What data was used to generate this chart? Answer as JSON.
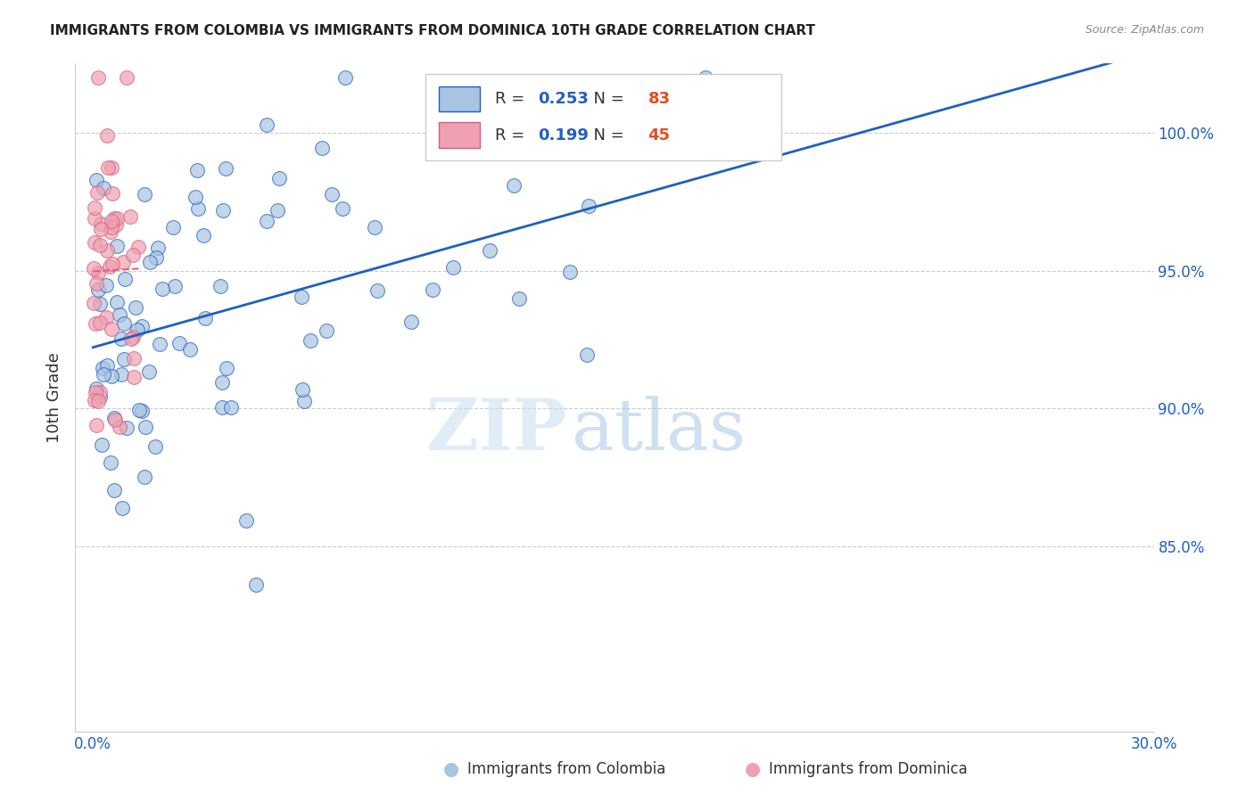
{
  "title": "IMMIGRANTS FROM COLOMBIA VS IMMIGRANTS FROM DOMINICA 10TH GRADE CORRELATION CHART",
  "source": "Source: ZipAtlas.com",
  "ylabel": "10th Grade",
  "legend_colombia": "Immigrants from Colombia",
  "legend_dominica": "Immigrants from Dominica",
  "R_colombia": 0.253,
  "N_colombia": 83,
  "R_dominica": 0.199,
  "N_dominica": 45,
  "xlim": [
    0.0,
    0.3
  ],
  "ylim": [
    0.783,
    1.025
  ],
  "xticks": [
    0.0,
    0.05,
    0.1,
    0.15,
    0.2,
    0.25,
    0.3
  ],
  "xtick_labels": [
    "0.0%",
    "",
    "",
    "",
    "",
    "",
    "30.0%"
  ],
  "ytick_labels_right": [
    "85.0%",
    "90.0%",
    "95.0%",
    "100.0%"
  ],
  "yticks_right": [
    0.85,
    0.9,
    0.95,
    1.0
  ],
  "color_colombia": "#a8c4e0",
  "color_dominica": "#f0a0b0",
  "color_line_colombia": "#2060c0",
  "color_line_dominica": "#e06080",
  "watermark_zip": "ZIP",
  "watermark_atlas": "atlas",
  "bg_color": "#ffffff"
}
